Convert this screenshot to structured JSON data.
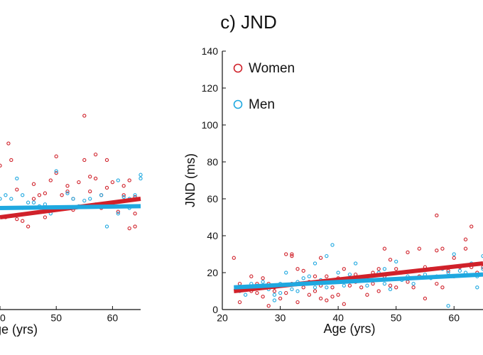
{
  "chart_data": [
    {
      "type": "scatter",
      "note": "partial left panel (cut off)",
      "title": "",
      "xlabel": "ge (yrs)",
      "ylabel": "",
      "xlim": [
        40,
        65
      ],
      "ylim": [
        0,
        140
      ],
      "x_ticks": [
        "0",
        "50",
        "60"
      ],
      "series": [
        {
          "name": "",
          "color": "#d0212a",
          "points": [
            [
              40,
              78
            ],
            [
              41.5,
              90
            ],
            [
              42,
              81
            ],
            [
              43,
              49
            ],
            [
              44,
              48
            ],
            [
              45,
              45
            ],
            [
              46,
              60
            ],
            [
              47,
              62
            ],
            [
              48,
              50
            ],
            [
              48,
              63
            ],
            [
              49,
              70
            ],
            [
              50,
              74
            ],
            [
              50,
              83
            ],
            [
              51,
              62
            ],
            [
              52,
              67
            ],
            [
              52,
              64
            ],
            [
              53,
              54
            ],
            [
              54,
              69
            ],
            [
              55,
              105
            ],
            [
              55,
              81
            ],
            [
              56,
              72
            ],
            [
              56,
              64
            ],
            [
              57,
              84
            ],
            [
              57,
              71
            ],
            [
              58,
              62
            ],
            [
              59,
              66
            ],
            [
              59,
              81
            ],
            [
              60,
              69
            ],
            [
              61,
              53
            ],
            [
              62,
              67
            ],
            [
              62,
              62
            ],
            [
              63,
              70
            ],
            [
              63,
              44
            ],
            [
              64,
              61
            ],
            [
              64,
              52
            ],
            [
              41,
              50
            ],
            [
              43,
              65
            ],
            [
              46,
              68
            ],
            [
              53,
              60
            ],
            [
              58,
              55
            ],
            [
              60,
              57
            ],
            [
              64,
              45
            ]
          ],
          "trend": [
            [
              40,
              50
            ],
            [
              65,
              60
            ]
          ]
        },
        {
          "name": "",
          "color": "#1fa8e0",
          "points": [
            [
              40,
              60
            ],
            [
              41,
              62
            ],
            [
              42,
              60
            ],
            [
              43,
              71
            ],
            [
              44,
              55
            ],
            [
              45,
              58
            ],
            [
              46,
              58
            ],
            [
              47,
              56
            ],
            [
              49,
              52
            ],
            [
              50,
              75
            ],
            [
              51,
              55
            ],
            [
              52,
              63
            ],
            [
              53,
              60
            ],
            [
              54,
              56
            ],
            [
              56,
              60
            ],
            [
              57,
              57
            ],
            [
              58,
              62
            ],
            [
              59,
              45
            ],
            [
              60,
              56
            ],
            [
              61,
              52
            ],
            [
              62,
              61
            ],
            [
              63,
              60
            ],
            [
              64,
              62
            ],
            [
              65,
              73
            ],
            [
              65,
              71
            ],
            [
              44,
              62
            ],
            [
              48,
              57
            ],
            [
              55,
              59
            ],
            [
              61,
              70
            ],
            [
              63,
              55
            ]
          ],
          "trend": [
            [
              40,
              55
            ],
            [
              65,
              56
            ]
          ]
        }
      ]
    },
    {
      "type": "scatter",
      "title": "c) JND",
      "xlabel": "Age (yrs)",
      "ylabel": "JND (ms)",
      "xlim": [
        20,
        65
      ],
      "ylim": [
        0,
        140
      ],
      "x_ticks": [
        20,
        30,
        40,
        50,
        60
      ],
      "y_ticks": [
        0,
        20,
        40,
        60,
        80,
        100,
        120,
        140
      ],
      "legend": {
        "placement": "top-left",
        "entries": [
          "Women",
          "Men"
        ]
      },
      "series": [
        {
          "name": "Women",
          "color": "#d0212a",
          "points": [
            [
              22,
              28
            ],
            [
              23,
              14
            ],
            [
              23,
              4
            ],
            [
              24,
              12
            ],
            [
              25,
              18
            ],
            [
              25,
              10
            ],
            [
              26,
              9
            ],
            [
              26,
              14
            ],
            [
              27,
              7
            ],
            [
              27,
              17
            ],
            [
              28,
              2
            ],
            [
              28,
              14
            ],
            [
              29,
              10
            ],
            [
              29,
              12
            ],
            [
              30,
              6
            ],
            [
              30,
              13
            ],
            [
              31,
              9
            ],
            [
              31,
              30
            ],
            [
              32,
              29
            ],
            [
              32,
              30
            ],
            [
              32,
              14
            ],
            [
              33,
              22
            ],
            [
              33,
              4
            ],
            [
              34,
              12
            ],
            [
              34,
              21
            ],
            [
              35,
              8
            ],
            [
              35,
              15
            ],
            [
              36,
              10
            ],
            [
              36,
              18
            ],
            [
              37,
              13
            ],
            [
              37,
              6
            ],
            [
              37,
              28
            ],
            [
              38,
              5
            ],
            [
              38,
              18
            ],
            [
              39,
              7
            ],
            [
              39,
              12
            ],
            [
              40,
              8
            ],
            [
              40,
              17
            ],
            [
              41,
              3
            ],
            [
              41,
              22
            ],
            [
              42,
              13
            ],
            [
              43,
              19
            ],
            [
              43,
              15
            ],
            [
              44,
              12
            ],
            [
              45,
              8
            ],
            [
              45,
              18
            ],
            [
              46,
              20
            ],
            [
              46,
              14
            ],
            [
              47,
              10
            ],
            [
              47,
              22
            ],
            [
              48,
              18
            ],
            [
              48,
              33
            ],
            [
              49,
              13
            ],
            [
              49,
              27
            ],
            [
              50,
              12
            ],
            [
              50,
              22
            ],
            [
              51,
              20
            ],
            [
              52,
              31
            ],
            [
              52,
              15
            ],
            [
              53,
              12
            ],
            [
              54,
              18
            ],
            [
              54,
              33
            ],
            [
              55,
              6
            ],
            [
              55,
              23
            ],
            [
              56,
              22
            ],
            [
              57,
              32
            ],
            [
              57,
              51
            ],
            [
              57,
              14
            ],
            [
              58,
              33
            ],
            [
              58,
              12
            ],
            [
              59,
              21
            ],
            [
              60,
              28
            ],
            [
              60,
              18
            ],
            [
              61,
              23
            ],
            [
              62,
              38
            ],
            [
              62,
              33
            ],
            [
              63,
              45
            ],
            [
              63,
              23
            ],
            [
              64,
              20
            ],
            [
              65,
              23
            ]
          ],
          "trend": [
            [
              22,
              10
            ],
            [
              65,
              25
            ]
          ]
        },
        {
          "name": "Men",
          "color": "#1fa8e0",
          "points": [
            [
              23,
              10
            ],
            [
              24,
              12
            ],
            [
              24,
              8
            ],
            [
              25,
              14
            ],
            [
              26,
              13
            ],
            [
              27,
              15
            ],
            [
              28,
              11
            ],
            [
              29,
              8
            ],
            [
              29,
              5
            ],
            [
              30,
              9
            ],
            [
              30,
              14
            ],
            [
              31,
              20
            ],
            [
              32,
              11
            ],
            [
              33,
              15
            ],
            [
              33,
              10
            ],
            [
              34,
              17
            ],
            [
              35,
              18
            ],
            [
              36,
              12
            ],
            [
              36,
              25
            ],
            [
              37,
              16
            ],
            [
              38,
              29
            ],
            [
              38,
              12
            ],
            [
              39,
              35
            ],
            [
              40,
              16
            ],
            [
              40,
              20
            ],
            [
              41,
              13
            ],
            [
              42,
              19
            ],
            [
              43,
              25
            ],
            [
              44,
              16
            ],
            [
              45,
              13
            ],
            [
              46,
              16
            ],
            [
              47,
              20
            ],
            [
              48,
              14
            ],
            [
              48,
              22
            ],
            [
              49,
              11
            ],
            [
              50,
              26
            ],
            [
              51,
              16
            ],
            [
              52,
              18
            ],
            [
              53,
              14
            ],
            [
              54,
              21
            ],
            [
              55,
              19
            ],
            [
              56,
              17
            ],
            [
              57,
              18
            ],
            [
              58,
              22
            ],
            [
              59,
              20
            ],
            [
              60,
              30
            ],
            [
              61,
              21
            ],
            [
              62,
              20
            ],
            [
              63,
              25
            ],
            [
              64,
              18
            ],
            [
              65,
              29
            ],
            [
              65,
              22
            ],
            [
              64,
              12
            ],
            [
              59,
              2
            ]
          ],
          "trend": [
            [
              22,
              12
            ],
            [
              65,
              19
            ]
          ]
        }
      ]
    }
  ]
}
